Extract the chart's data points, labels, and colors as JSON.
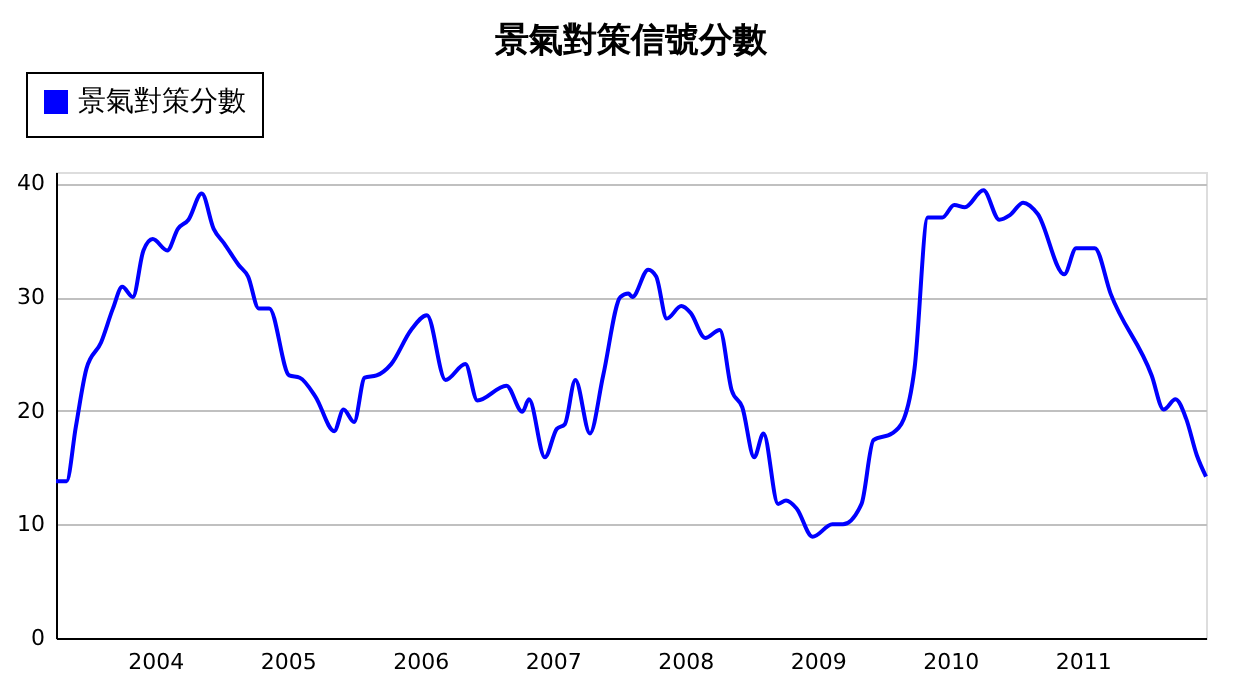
{
  "chart_data": {
    "type": "line",
    "title": "景氣對策信號分數",
    "x": [
      2003.25,
      2003.33,
      2003.4,
      2003.48,
      2003.59,
      2003.68,
      2003.75,
      2003.83,
      2003.91,
      2003.98,
      2004.09,
      2004.17,
      2004.25,
      2004.35,
      2004.44,
      2004.52,
      2004.63,
      2004.7,
      2004.78,
      2004.86,
      2005.01,
      2005.09,
      2005.21,
      2005.35,
      2005.42,
      2005.5,
      2005.58,
      2005.67,
      2005.78,
      2005.93,
      2006.05,
      2006.19,
      2006.34,
      2006.43,
      2006.65,
      2006.77,
      2006.82,
      2006.94,
      2007.03,
      2007.09,
      2007.17,
      2007.28,
      2007.38,
      2007.51,
      2007.57,
      2007.6,
      2007.72,
      2007.78,
      2007.86,
      2007.97,
      2008.04,
      2008.15,
      2008.26,
      2008.35,
      2008.43,
      2008.52,
      2008.59,
      2008.7,
      2008.76,
      2008.84,
      2008.96,
      2009.11,
      2009.19,
      2009.33,
      2009.42,
      2009.56,
      2009.65,
      2009.73,
      2009.83,
      2009.94,
      2010.03,
      2010.11,
      2010.25,
      2010.37,
      2010.45,
      2010.55,
      2010.66,
      2010.86,
      2010.95,
      2011.09,
      2011.21,
      2011.52,
      2011.61,
      2011.7,
      2011.78,
      2011.86,
      2011.93
    ],
    "series": [
      {
        "name": "景氣對策分數",
        "color": "#0000ff",
        "values": [
          13.8,
          13.8,
          18.6,
          23.7,
          26,
          29,
          30.9,
          30,
          34.1,
          35.1,
          34.1,
          36,
          36.8,
          39.1,
          36,
          34.7,
          32.8,
          31.8,
          29,
          29,
          23.1,
          22.9,
          21.2,
          18.2,
          20.1,
          19,
          22.9,
          23.1,
          24.1,
          27.1,
          28.4,
          22.7,
          24.1,
          20.9,
          22.2,
          19.9,
          21,
          15.9,
          18.4,
          18.8,
          22.7,
          18,
          23.1,
          30,
          30.3,
          30,
          32.4,
          31.8,
          28.1,
          29.2,
          28.6,
          26.4,
          27.1,
          21.8,
          20.3,
          15.9,
          18,
          11.8,
          12.1,
          11.4,
          8.9,
          10,
          10,
          11.8,
          17.4,
          18,
          19.3,
          23.7,
          37,
          37,
          38.1,
          37.9,
          39.4,
          36.8,
          37.2,
          38.3,
          37.3,
          32,
          34.3,
          34.3,
          30.3,
          23.1,
          20.1,
          21,
          19.3,
          16.1,
          14.2
        ]
      }
    ],
    "xlim": [
      2003.25,
      2011.93
    ],
    "xticks": [
      2004,
      2005,
      2006,
      2007,
      2008,
      2009,
      2010,
      2011
    ],
    "ylim": [
      0,
      41
    ],
    "yticks": [
      0,
      10,
      20,
      30,
      40
    ],
    "grid": "y",
    "legend": "top left",
    "marker": "none",
    "line_style": "solid"
  }
}
